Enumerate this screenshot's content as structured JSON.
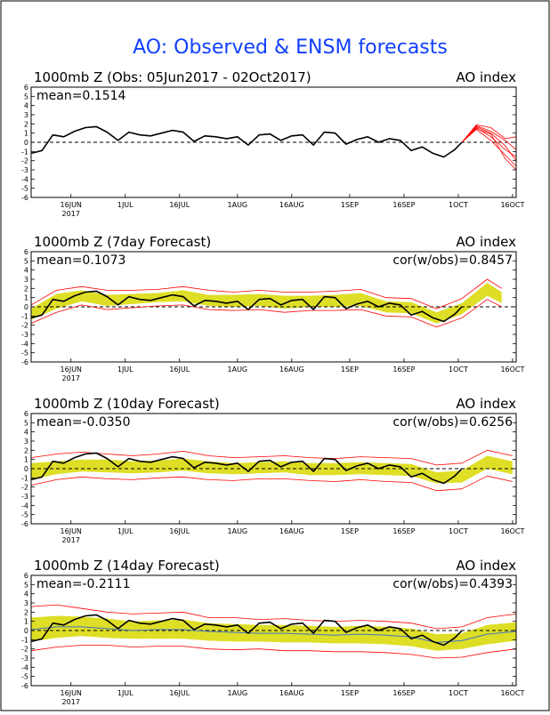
{
  "figure": {
    "title": "AO: Observed & ENSM forecasts"
  },
  "x_axis": {
    "ticks": [
      "16JUN",
      "1JUL",
      "16JUL",
      "1AUG",
      "16AUG",
      "1SEP",
      "16SEP",
      "1OCT",
      "16OCT"
    ],
    "year_label": "2017",
    "range_days": [
      0,
      134
    ]
  },
  "colors": {
    "observed": "#000000",
    "ensemble_members": "#ff0000",
    "ensemble_band": "#d8d800",
    "ensemble_mean": "#4472c4",
    "title": "#1040ff"
  },
  "chart_data": [
    {
      "type": "line",
      "title": "1000mb Z (Obs: 05Jun2017 - 02Oct2017)",
      "right_label": "AO index",
      "mean_label": "mean=0.1514",
      "cor_label": "",
      "ylim": [
        -6,
        6
      ],
      "y_ticks": [
        6,
        5,
        4,
        3,
        2,
        1,
        0,
        -1,
        -2,
        -3,
        -4,
        -5,
        -6
      ],
      "dates": [
        "2017-06-05",
        "2017-10-02"
      ],
      "series": [
        {
          "role": "observed",
          "x": [
            0,
            3,
            6,
            9,
            12,
            15,
            18,
            21,
            24,
            27,
            30,
            33,
            36,
            39,
            42,
            45,
            48,
            51,
            54,
            57,
            60,
            63,
            66,
            69,
            72,
            75,
            78,
            81,
            84,
            87,
            90,
            93,
            96,
            99,
            102,
            105,
            108,
            111,
            114,
            117,
            119
          ],
          "values": [
            -1.2,
            -0.9,
            0.8,
            0.6,
            1.2,
            1.6,
            1.7,
            1.1,
            0.2,
            1.1,
            0.8,
            0.7,
            1.0,
            1.3,
            1.1,
            0.1,
            0.7,
            0.6,
            0.4,
            0.6,
            -0.3,
            0.8,
            0.9,
            0.2,
            0.7,
            0.8,
            -0.3,
            1.1,
            1.0,
            -0.2,
            0.3,
            0.6,
            0.0,
            0.4,
            0.2,
            -0.9,
            -0.5,
            -1.2,
            -1.6,
            -0.8,
            0.0
          ]
        },
        {
          "role": "forecast_member",
          "x": [
            119,
            123,
            127,
            131,
            134
          ],
          "values": [
            0.0,
            1.8,
            1.2,
            0.2,
            -0.8
          ]
        },
        {
          "role": "forecast_member",
          "x": [
            119,
            123,
            127,
            131,
            134
          ],
          "values": [
            0.0,
            1.6,
            0.6,
            -0.8,
            -1.6
          ]
        },
        {
          "role": "forecast_member",
          "x": [
            119,
            123,
            127,
            131,
            134
          ],
          "values": [
            0.0,
            1.9,
            1.6,
            0.4,
            0.6
          ]
        },
        {
          "role": "forecast_member",
          "x": [
            119,
            123,
            127,
            131,
            134
          ],
          "values": [
            0.0,
            1.4,
            0.2,
            -1.4,
            -2.6
          ]
        },
        {
          "role": "forecast_member",
          "x": [
            119,
            123,
            127,
            131,
            134
          ],
          "values": [
            0.0,
            1.7,
            1.0,
            -0.4,
            -2.0
          ]
        },
        {
          "role": "forecast_member",
          "x": [
            119,
            123,
            127,
            131,
            134
          ],
          "values": [
            0.0,
            1.5,
            0.9,
            -1.8,
            -3.0
          ]
        }
      ]
    },
    {
      "type": "line",
      "title": "1000mb Z (7day Forecast)",
      "right_label": "AO index",
      "mean_label": "mean=0.1073",
      "cor_label": "cor(w/obs)=0.8457",
      "ylim": [
        -6,
        6
      ],
      "y_ticks": [
        6,
        5,
        4,
        3,
        2,
        1,
        0,
        -1,
        -2,
        -3,
        -4,
        -5,
        -6
      ],
      "band": {
        "x": [
          0,
          7,
          14,
          21,
          28,
          35,
          42,
          49,
          56,
          63,
          70,
          77,
          84,
          91,
          98,
          105,
          112,
          119,
          126,
          130
        ],
        "upper": [
          -0.2,
          1.4,
          1.8,
          1.3,
          1.4,
          1.5,
          1.8,
          1.3,
          1.3,
          1.4,
          1.2,
          1.2,
          1.3,
          1.5,
          0.6,
          0.5,
          -0.6,
          0.4,
          2.6,
          1.6
        ],
        "lower": [
          -1.4,
          -0.2,
          0.6,
          0.1,
          0.3,
          0.5,
          0.6,
          0.1,
          0.0,
          0.1,
          -0.2,
          0.0,
          0.0,
          0.1,
          -0.6,
          -0.7,
          -1.8,
          -0.8,
          1.2,
          0.4
        ]
      },
      "series": [
        {
          "role": "band_edge",
          "x": [
            0,
            7,
            14,
            21,
            28,
            35,
            42,
            49,
            56,
            63,
            70,
            77,
            84,
            91,
            98,
            105,
            112,
            119,
            126,
            130
          ],
          "values": [
            0.2,
            1.8,
            2.2,
            1.8,
            1.8,
            1.9,
            2.2,
            1.8,
            1.6,
            1.8,
            1.6,
            1.6,
            1.7,
            1.9,
            1.0,
            0.9,
            -0.2,
            0.9,
            3.0,
            2.0
          ]
        },
        {
          "role": "band_edge",
          "x": [
            0,
            7,
            14,
            21,
            28,
            35,
            42,
            49,
            56,
            63,
            70,
            77,
            84,
            91,
            98,
            105,
            112,
            119,
            126,
            130
          ],
          "values": [
            -1.8,
            -0.6,
            0.2,
            -0.3,
            -0.1,
            0.1,
            0.2,
            -0.3,
            -0.4,
            -0.3,
            -0.6,
            -0.4,
            -0.4,
            -0.3,
            -1.0,
            -1.1,
            -2.2,
            -1.2,
            0.8,
            0.0
          ]
        },
        {
          "role": "observed",
          "x": [
            0,
            3,
            6,
            9,
            12,
            15,
            18,
            21,
            24,
            27,
            30,
            33,
            36,
            39,
            42,
            45,
            48,
            51,
            54,
            57,
            60,
            63,
            66,
            69,
            72,
            75,
            78,
            81,
            84,
            87,
            90,
            93,
            96,
            99,
            102,
            105,
            108,
            111,
            114,
            117,
            119
          ],
          "values": [
            -1.2,
            -0.9,
            0.8,
            0.6,
            1.2,
            1.6,
            1.7,
            1.1,
            0.2,
            1.1,
            0.8,
            0.7,
            1.0,
            1.3,
            1.1,
            0.1,
            0.7,
            0.6,
            0.4,
            0.6,
            -0.3,
            0.8,
            0.9,
            0.2,
            0.7,
            0.8,
            -0.3,
            1.1,
            1.0,
            -0.2,
            0.3,
            0.6,
            0.0,
            0.4,
            0.2,
            -0.9,
            -0.5,
            -1.2,
            -1.6,
            -0.8,
            0.0
          ]
        }
      ]
    },
    {
      "type": "line",
      "title": "1000mb Z (10day Forecast)",
      "right_label": "AO index",
      "mean_label": "mean=-0.0350",
      "cor_label": "cor(w/obs)=0.6256",
      "ylim": [
        -6,
        6
      ],
      "y_ticks": [
        6,
        5,
        4,
        3,
        2,
        1,
        0,
        -1,
        -2,
        -3,
        -4,
        -5,
        -6
      ],
      "band": {
        "x": [
          0,
          7,
          14,
          21,
          28,
          35,
          42,
          49,
          56,
          63,
          70,
          77,
          84,
          91,
          98,
          105,
          112,
          119,
          126,
          133
        ],
        "upper": [
          0.6,
          0.8,
          1.0,
          1.0,
          0.8,
          0.9,
          1.1,
          0.8,
          0.6,
          0.7,
          0.8,
          0.6,
          0.6,
          0.7,
          0.6,
          0.5,
          -0.4,
          -0.2,
          1.4,
          0.8
        ],
        "lower": [
          -1.2,
          -0.6,
          -0.3,
          -0.4,
          -0.5,
          -0.4,
          -0.2,
          -0.5,
          -0.6,
          -0.5,
          -0.4,
          -0.7,
          -0.7,
          -0.6,
          -0.7,
          -0.8,
          -1.6,
          -1.5,
          0.0,
          -0.6
        ]
      },
      "series": [
        {
          "role": "band_edge",
          "x": [
            0,
            7,
            14,
            21,
            28,
            35,
            42,
            49,
            56,
            63,
            70,
            77,
            84,
            91,
            98,
            105,
            112,
            119,
            126,
            133
          ],
          "values": [
            1.2,
            1.6,
            1.8,
            1.6,
            1.4,
            1.6,
            1.9,
            1.4,
            1.2,
            1.3,
            1.4,
            1.2,
            1.1,
            1.3,
            1.2,
            1.1,
            0.4,
            0.6,
            2.0,
            1.4
          ]
        },
        {
          "role": "band_edge",
          "x": [
            0,
            7,
            14,
            21,
            28,
            35,
            42,
            49,
            56,
            63,
            70,
            77,
            84,
            91,
            98,
            105,
            112,
            119,
            126,
            133
          ],
          "values": [
            -1.8,
            -1.2,
            -0.9,
            -1.1,
            -1.2,
            -1.0,
            -0.9,
            -1.2,
            -1.3,
            -1.1,
            -1.1,
            -1.3,
            -1.4,
            -1.2,
            -1.4,
            -1.5,
            -2.4,
            -2.2,
            -0.8,
            -1.4
          ]
        },
        {
          "role": "observed",
          "x": [
            0,
            3,
            6,
            9,
            12,
            15,
            18,
            21,
            24,
            27,
            30,
            33,
            36,
            39,
            42,
            45,
            48,
            51,
            54,
            57,
            60,
            63,
            66,
            69,
            72,
            75,
            78,
            81,
            84,
            87,
            90,
            93,
            96,
            99,
            102,
            105,
            108,
            111,
            114,
            117,
            119
          ],
          "values": [
            -1.2,
            -0.9,
            0.8,
            0.6,
            1.2,
            1.6,
            1.7,
            1.1,
            0.2,
            1.1,
            0.8,
            0.7,
            1.0,
            1.3,
            1.1,
            0.1,
            0.7,
            0.6,
            0.4,
            0.6,
            -0.3,
            0.8,
            0.9,
            0.2,
            0.7,
            0.8,
            -0.3,
            1.1,
            1.0,
            -0.2,
            0.3,
            0.6,
            0.0,
            0.4,
            0.2,
            -0.9,
            -0.5,
            -1.2,
            -1.6,
            -0.8,
            0.0
          ]
        }
      ]
    },
    {
      "type": "line",
      "title": "1000mb Z (14day Forecast)",
      "right_label": "AO index",
      "mean_label": "mean=-0.2111",
      "cor_label": "cor(w/obs)=0.4393",
      "ylim": [
        -6,
        6
      ],
      "y_ticks": [
        6,
        5,
        4,
        3,
        2,
        1,
        0,
        -1,
        -2,
        -3,
        -4,
        -5,
        -6
      ],
      "band": {
        "x": [
          0,
          7,
          14,
          21,
          28,
          35,
          42,
          49,
          56,
          63,
          70,
          77,
          84,
          91,
          98,
          105,
          112,
          119,
          126,
          134
        ],
        "upper": [
          1.4,
          1.6,
          1.5,
          1.3,
          1.0,
          1.1,
          1.2,
          0.8,
          0.7,
          0.6,
          0.6,
          0.5,
          0.4,
          0.5,
          0.4,
          0.2,
          -0.4,
          -0.3,
          0.6,
          0.9
        ],
        "lower": [
          -1.2,
          -0.8,
          -0.6,
          -0.8,
          -0.9,
          -0.9,
          -0.9,
          -1.1,
          -1.2,
          -1.2,
          -1.3,
          -1.3,
          -1.4,
          -1.4,
          -1.5,
          -1.7,
          -2.2,
          -2.0,
          -1.5,
          -1.1
        ]
      },
      "series": [
        {
          "role": "ensemble_mean",
          "x": [
            0,
            7,
            14,
            21,
            28,
            35,
            42,
            49,
            56,
            63,
            70,
            77,
            84,
            91,
            98,
            105,
            112,
            119,
            126,
            134
          ],
          "values": [
            0.1,
            0.4,
            0.4,
            0.2,
            0.0,
            0.1,
            0.1,
            -0.1,
            -0.2,
            -0.3,
            -0.3,
            -0.4,
            -0.5,
            -0.4,
            -0.5,
            -0.7,
            -1.3,
            -1.1,
            -0.4,
            -0.1
          ]
        },
        {
          "role": "band_edge",
          "x": [
            0,
            7,
            14,
            21,
            28,
            35,
            42,
            49,
            56,
            63,
            70,
            77,
            84,
            91,
            98,
            105,
            112,
            119,
            126,
            134
          ],
          "values": [
            2.6,
            2.8,
            2.4,
            2.0,
            1.8,
            1.9,
            2.0,
            1.4,
            1.4,
            1.2,
            1.3,
            1.1,
            1.0,
            1.1,
            1.0,
            0.8,
            0.2,
            0.4,
            1.4,
            1.8
          ]
        },
        {
          "role": "band_edge",
          "x": [
            0,
            7,
            14,
            21,
            28,
            35,
            42,
            49,
            56,
            63,
            70,
            77,
            84,
            91,
            98,
            105,
            112,
            119,
            126,
            134
          ],
          "values": [
            -2.2,
            -1.8,
            -1.6,
            -1.6,
            -1.8,
            -1.7,
            -1.7,
            -2.0,
            -2.1,
            -2.0,
            -2.2,
            -2.2,
            -2.3,
            -2.3,
            -2.4,
            -2.6,
            -3.0,
            -2.9,
            -2.4,
            -2.0
          ]
        },
        {
          "role": "observed",
          "x": [
            0,
            3,
            6,
            9,
            12,
            15,
            18,
            21,
            24,
            27,
            30,
            33,
            36,
            39,
            42,
            45,
            48,
            51,
            54,
            57,
            60,
            63,
            66,
            69,
            72,
            75,
            78,
            81,
            84,
            87,
            90,
            93,
            96,
            99,
            102,
            105,
            108,
            111,
            114,
            117,
            119
          ],
          "values": [
            -1.2,
            -0.9,
            0.8,
            0.6,
            1.2,
            1.6,
            1.7,
            1.1,
            0.2,
            1.1,
            0.8,
            0.7,
            1.0,
            1.3,
            1.1,
            0.1,
            0.7,
            0.6,
            0.4,
            0.6,
            -0.3,
            0.8,
            0.9,
            0.2,
            0.7,
            0.8,
            -0.3,
            1.1,
            1.0,
            -0.2,
            0.3,
            0.6,
            0.0,
            0.4,
            0.2,
            -0.9,
            -0.5,
            -1.2,
            -1.6,
            -0.8,
            0.0
          ]
        }
      ]
    }
  ]
}
